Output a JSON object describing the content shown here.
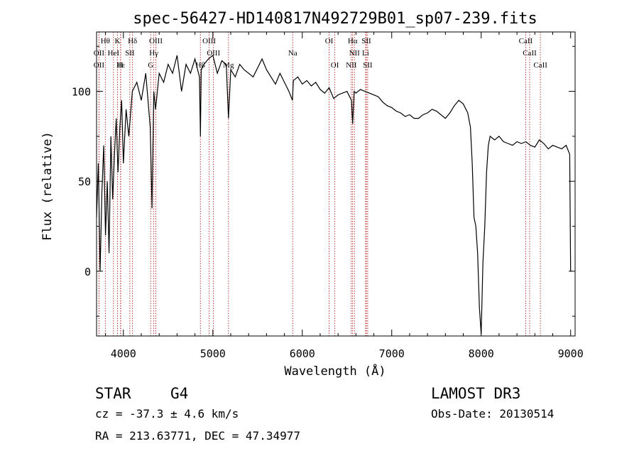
{
  "chart_data": {
    "type": "line",
    "title": "spec-56427-HD140817N492729B01_sp07-239.fits",
    "xlabel": "Wavelength (Å)",
    "ylabel": "Flux (relative)",
    "xlim": [
      3700,
      9050
    ],
    "ylim": [
      -36,
      133
    ],
    "x_ticks": [
      4000,
      5000,
      6000,
      7000,
      8000,
      9000
    ],
    "y_ticks": [
      0,
      50,
      100
    ],
    "series": [
      {
        "name": "flux",
        "x": [
          3700,
          3720,
          3740,
          3760,
          3780,
          3800,
          3820,
          3840,
          3860,
          3880,
          3900,
          3920,
          3940,
          3960,
          3980,
          4000,
          4030,
          4060,
          4100,
          4150,
          4200,
          4250,
          4300,
          4320,
          4340,
          4360,
          4400,
          4450,
          4500,
          4550,
          4600,
          4650,
          4700,
          4750,
          4800,
          4850,
          4861,
          4870,
          4900,
          4950,
          5000,
          5050,
          5100,
          5150,
          5175,
          5200,
          5250,
          5300,
          5350,
          5400,
          5450,
          5500,
          5550,
          5600,
          5650,
          5700,
          5750,
          5800,
          5850,
          5890,
          5900,
          5950,
          6000,
          6050,
          6100,
          6150,
          6200,
          6250,
          6300,
          6350,
          6400,
          6450,
          6500,
          6550,
          6563,
          6580,
          6600,
          6650,
          6700,
          6750,
          6800,
          6850,
          6900,
          6950,
          7000,
          7050,
          7100,
          7150,
          7200,
          7250,
          7300,
          7350,
          7400,
          7450,
          7500,
          7550,
          7600,
          7650,
          7700,
          7750,
          7800,
          7850,
          7880,
          7900,
          7920,
          7940,
          7960,
          7980,
          8000,
          8020,
          8040,
          8060,
          8080,
          8100,
          8150,
          8200,
          8250,
          8300,
          8350,
          8400,
          8450,
          8500,
          8550,
          8600,
          8650,
          8700,
          8750,
          8800,
          8850,
          8900,
          8950,
          8990,
          9000,
          9010
        ],
        "y": [
          30,
          60,
          0,
          45,
          70,
          20,
          50,
          10,
          75,
          40,
          65,
          85,
          55,
          80,
          95,
          60,
          90,
          75,
          100,
          105,
          95,
          110,
          80,
          35,
          100,
          90,
          110,
          105,
          115,
          110,
          120,
          100,
          115,
          110,
          118,
          108,
          75,
          112,
          115,
          118,
          120,
          110,
          117,
          115,
          85,
          112,
          108,
          115,
          112,
          110,
          108,
          113,
          118,
          112,
          108,
          104,
          110,
          105,
          100,
          95,
          106,
          108,
          104,
          106,
          103,
          105,
          101,
          99,
          102,
          96,
          98,
          99,
          100,
          95,
          82,
          100,
          99,
          101,
          100,
          99,
          98,
          97,
          94,
          92,
          91,
          89,
          88,
          86,
          87,
          85,
          85,
          87,
          88,
          90,
          89,
          87,
          85,
          88,
          92,
          95,
          93,
          88,
          80,
          60,
          30,
          25,
          10,
          -20,
          -35,
          5,
          25,
          55,
          70,
          75,
          73,
          75,
          72,
          71,
          70,
          72,
          71,
          72,
          70,
          69,
          73,
          71,
          68,
          70,
          69,
          68,
          70,
          65,
          0,
          0
        ]
      }
    ],
    "lines": [
      {
        "label": "Hθ",
        "x": 3798,
        "row": 0
      },
      {
        "label": "K",
        "x": 3934,
        "row": 0
      },
      {
        "label": "Hδ",
        "x": 4102,
        "row": 0
      },
      {
        "label": "OIII",
        "x": 4363,
        "row": 0
      },
      {
        "label": "OIII",
        "x": 4959,
        "row": 0
      },
      {
        "label": "Na",
        "x": 5893,
        "row": 1
      },
      {
        "label": "OI",
        "x": 6300,
        "row": 0
      },
      {
        "label": "OI",
        "x": 6364,
        "row": 2
      },
      {
        "label": "Hα",
        "x": 6563,
        "row": 0
      },
      {
        "label": "NII",
        "x": 6583,
        "row": 1
      },
      {
        "label": "NII",
        "x": 6548,
        "row": 2
      },
      {
        "label": "SII",
        "x": 6716,
        "row": 0
      },
      {
        "label": "Li",
        "x": 6708,
        "row": 1
      },
      {
        "label": "SII",
        "x": 6731,
        "row": 2
      },
      {
        "label": "CaII",
        "x": 8498,
        "row": 0
      },
      {
        "label": "CaII",
        "x": 8542,
        "row": 1
      },
      {
        "label": "CaII",
        "x": 8662,
        "row": 2
      },
      {
        "label": "OII",
        "x": 3727,
        "row": 1
      },
      {
        "label": "HeI",
        "x": 3889,
        "row": 1
      },
      {
        "label": "SII",
        "x": 4072,
        "row": 1
      },
      {
        "label": "Hγ",
        "x": 4340,
        "row": 1
      },
      {
        "label": "OIII",
        "x": 5007,
        "row": 1
      },
      {
        "label": "OII",
        "x": 3727,
        "row": 2
      },
      {
        "label": "Hε",
        "x": 3970,
        "row": 2
      },
      {
        "label": "H",
        "x": 3968,
        "row": 2
      },
      {
        "label": "G",
        "x": 4305,
        "row": 2
      },
      {
        "label": "Hβ",
        "x": 4861,
        "row": 2
      },
      {
        "label": "Mg",
        "x": 5175,
        "row": 2
      }
    ]
  },
  "info": {
    "object_class": "STAR",
    "subclass": "G4",
    "survey": "LAMOST DR3",
    "cz": "cz = -37.3 ± 4.6 km/s",
    "obs_date": "Obs-Date: 20130514",
    "coords": "RA = 213.63771, DEC =  47.34977"
  }
}
